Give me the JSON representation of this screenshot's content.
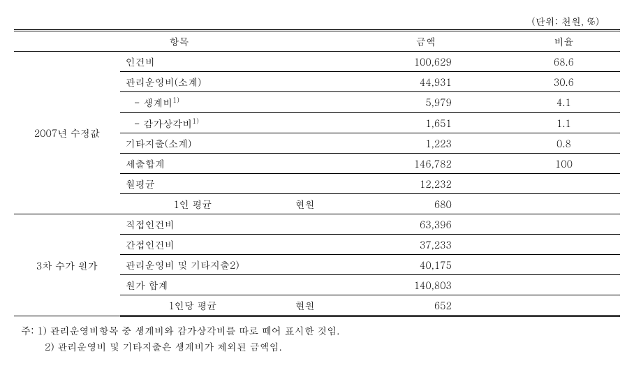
{
  "unit_label": "(단위: 천원, %)",
  "headers": {
    "item": "항목",
    "amount": "금액",
    "ratio": "비율"
  },
  "groups": [
    {
      "label": "2007년 수정값",
      "rows": [
        {
          "item": "인건비",
          "subitem": "",
          "amount": "100,629",
          "ratio": "68.6"
        },
        {
          "item": "관리운영비(소계)",
          "subitem": "",
          "amount": "44,931",
          "ratio": "30.6"
        },
        {
          "item": "- 생계비",
          "sup": "1)",
          "indent": true,
          "subitem": "",
          "amount": "5,979",
          "ratio": "4.1"
        },
        {
          "item": "- 감가상각비",
          "sup": "1)",
          "indent": true,
          "subitem": "",
          "amount": "1,651",
          "ratio": "1.1"
        },
        {
          "item": "기타지출(소계)",
          "subitem": "",
          "amount": "1,223",
          "ratio": "0.8"
        },
        {
          "item": "세출합계",
          "subitem": "",
          "amount": "146,782",
          "ratio": "100"
        },
        {
          "item": "월평균",
          "subitem": "",
          "amount": "12,232",
          "ratio": ""
        },
        {
          "item": "1인 평균",
          "item_align": "center",
          "subitem": "현원",
          "amount": "680",
          "ratio": ""
        }
      ]
    },
    {
      "label": "3차 수가 원가",
      "rows": [
        {
          "item": "직접인건비",
          "subitem": "",
          "amount": "63,396",
          "ratio": ""
        },
        {
          "item": "간접인건비",
          "subitem": "",
          "amount": "37,233",
          "ratio": ""
        },
        {
          "item": "관리운영비 및 기타지출2)",
          "subitem": "",
          "amount": "40,175",
          "ratio": ""
        },
        {
          "item": "원가 합계",
          "subitem": "",
          "amount": "140,803",
          "ratio": ""
        },
        {
          "item": "1인당 평균",
          "item_align": "center",
          "subitem": "현원",
          "amount": "652",
          "ratio": "",
          "last": true
        }
      ]
    }
  ],
  "notes": {
    "prefix": "주: ",
    "items": [
      "1) 관리운영비항목 중 생계비와 감가상각비를 따로 떼어 표시한 것임.",
      "2) 관리운영비 및 기타지출은 생계비가 제외된 금액임."
    ]
  }
}
